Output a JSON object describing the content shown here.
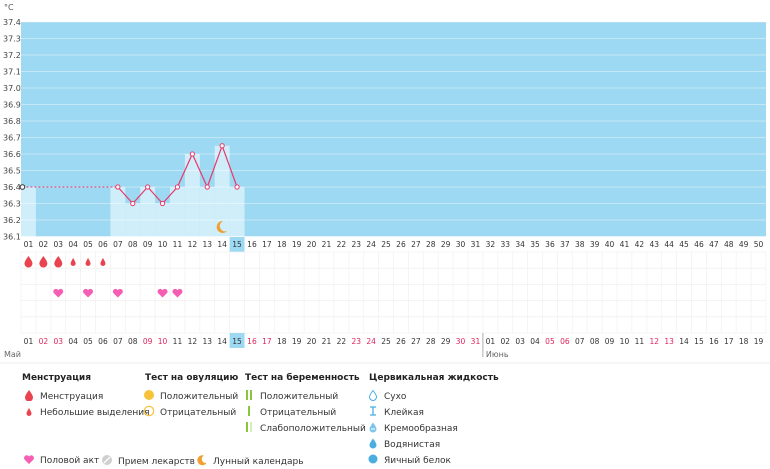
{
  "chart_data": {
    "type": "line",
    "unit_label": "°C",
    "y_ticks": [
      "37.4",
      "37.3",
      "37.2",
      "37.1",
      "37.0",
      "36.9",
      "36.8",
      "36.7",
      "36.6",
      "36.5",
      "36.4",
      "36.3",
      "36.2",
      "36.1"
    ],
    "ylim": [
      36.1,
      37.4
    ],
    "days_top": [
      "01",
      "02",
      "03",
      "04",
      "05",
      "06",
      "07",
      "08",
      "09",
      "10",
      "11",
      "12",
      "13",
      "14",
      "15",
      "16",
      "17",
      "18",
      "19",
      "20",
      "21",
      "22",
      "23",
      "24",
      "25",
      "26",
      "27",
      "28",
      "29",
      "30",
      "31",
      "32",
      "33",
      "34",
      "35",
      "36",
      "37",
      "38",
      "39",
      "40",
      "41",
      "42",
      "43",
      "44",
      "45",
      "46",
      "47",
      "48",
      "49",
      "50"
    ],
    "current_day_index": 14,
    "temperatures": [
      {
        "day": 1,
        "value": 36.4
      },
      {
        "day": 7,
        "value": 36.4
      },
      {
        "day": 8,
        "value": 36.3
      },
      {
        "day": 9,
        "value": 36.4
      },
      {
        "day": 10,
        "value": 36.3
      },
      {
        "day": 11,
        "value": 36.4
      },
      {
        "day": 12,
        "value": 36.6
      },
      {
        "day": 13,
        "value": 36.4
      },
      {
        "day": 14,
        "value": 36.65
      },
      {
        "day": 15,
        "value": 36.4
      }
    ],
    "moon_day": 14,
    "menstruation_days": [
      1,
      2,
      3
    ],
    "spotting_days": [
      4,
      5,
      6
    ],
    "intercourse_days": [
      3,
      5,
      7,
      10,
      11
    ],
    "dates_bottom": [
      "01",
      "02",
      "03",
      "04",
      "05",
      "06",
      "07",
      "08",
      "09",
      "10",
      "11",
      "12",
      "13",
      "14",
      "15",
      "16",
      "17",
      "18",
      "19",
      "20",
      "21",
      "22",
      "23",
      "24",
      "25",
      "26",
      "27",
      "28",
      "29",
      "30",
      "31",
      "01",
      "02",
      "03",
      "04",
      "05",
      "06",
      "07",
      "08",
      "09",
      "10",
      "11",
      "12",
      "13",
      "14",
      "15",
      "16",
      "17",
      "18",
      "19"
    ],
    "weekend_indices": [
      1,
      2,
      8,
      9,
      15,
      16,
      22,
      23,
      29,
      30,
      35,
      36,
      42,
      43
    ],
    "month_labels": [
      {
        "index": 0,
        "label": "Май"
      },
      {
        "index": 31,
        "label": "Июнь"
      }
    ],
    "colors": {
      "chart_bg": "#9dd9f2",
      "bar": "#cfeefa",
      "line": "#e8396a",
      "blood": "#e8434f",
      "heart": "#f45fb4",
      "current": "#9dd9f2",
      "moon": "#f0a030"
    }
  },
  "legend": {
    "col1": {
      "title": "Менструация",
      "items": [
        "Менструация",
        "Небольшие выделения"
      ]
    },
    "col2": {
      "title": "Тест на овуляцию",
      "items": [
        "Положительный",
        "Отрицательный"
      ]
    },
    "col3": {
      "title": "Тест на беременность",
      "items": [
        "Положительный",
        "Отрицательный",
        "Слабоположительный"
      ]
    },
    "col4": {
      "title": "Цервикальная жидкость",
      "items": [
        "Сухо",
        "Клейкая",
        "Кремообразная",
        "Водянистая",
        "Яичный белок"
      ]
    },
    "bottom": [
      "Половой акт",
      "Прием лекарств",
      "Лунный календарь"
    ]
  }
}
